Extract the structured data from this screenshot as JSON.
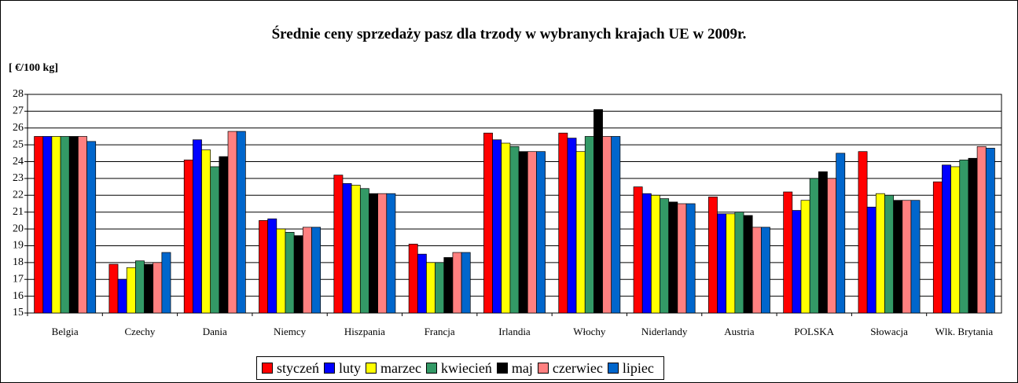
{
  "chart_data": {
    "type": "bar",
    "title": "Średnie ceny sprzedaży pasz dla trzody w wybranych krajach UE w 2009r.",
    "y_label": "[ €/100 kg]",
    "categories": [
      "Belgia",
      "Czechy",
      "Dania",
      "Niemcy",
      "Hiszpania",
      "Francja",
      "Irlandia",
      "Włochy",
      "Niderlandy",
      "Austria",
      "POLSKA",
      "Słowacja",
      "Wlk. Brytania"
    ],
    "series": [
      {
        "name": "styczeń",
        "color": "#ff0000",
        "values": [
          25.5,
          17.9,
          24.1,
          20.5,
          23.2,
          19.1,
          25.7,
          25.7,
          22.5,
          21.9,
          22.2,
          24.6,
          22.8
        ]
      },
      {
        "name": "luty",
        "color": "#0000ff",
        "values": [
          25.5,
          17.0,
          25.3,
          20.6,
          22.7,
          18.5,
          25.3,
          25.4,
          22.1,
          20.9,
          21.1,
          21.3,
          23.8
        ]
      },
      {
        "name": "marzec",
        "color": "#ffff00",
        "values": [
          25.5,
          17.7,
          24.7,
          20.0,
          22.6,
          18.0,
          25.1,
          24.6,
          22.0,
          20.9,
          21.7,
          22.1,
          23.7
        ]
      },
      {
        "name": "kwiecień",
        "color": "#339966",
        "values": [
          25.5,
          18.1,
          23.7,
          19.8,
          22.4,
          18.0,
          24.9,
          25.5,
          21.8,
          21.0,
          23.0,
          22.0,
          24.1
        ]
      },
      {
        "name": "maj",
        "color": "#000000",
        "values": [
          25.5,
          17.9,
          24.3,
          19.6,
          22.1,
          18.3,
          24.6,
          27.1,
          21.6,
          20.8,
          23.4,
          21.7,
          24.2
        ]
      },
      {
        "name": "czerwiec",
        "color": "#ff8080",
        "values": [
          25.5,
          18.0,
          25.8,
          20.1,
          22.1,
          18.6,
          24.6,
          25.5,
          21.5,
          20.1,
          23.0,
          21.7,
          24.9
        ]
      },
      {
        "name": "lipiec",
        "color": "#0066cc",
        "values": [
          25.2,
          18.6,
          25.8,
          20.1,
          22.1,
          18.6,
          24.6,
          25.5,
          21.5,
          20.1,
          24.5,
          21.7,
          24.8
        ]
      }
    ],
    "ylim": [
      15,
      28
    ],
    "yticks": [
      15,
      16,
      17,
      18,
      19,
      20,
      21,
      22,
      23,
      24,
      25,
      26,
      27,
      28
    ],
    "grid": true
  }
}
